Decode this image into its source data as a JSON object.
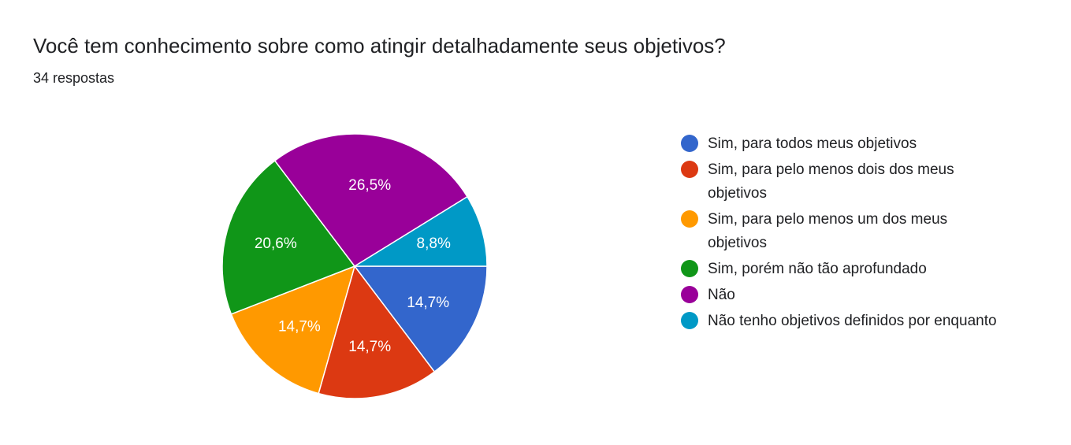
{
  "question": {
    "title": "Você tem conhecimento sobre como atingir detalhadamente seus objetivos?",
    "responses": "34 respostas"
  },
  "chart_data": {
    "type": "pie",
    "title": "Você tem conhecimento sobre como atingir detalhadamente seus objetivos?",
    "subtitle": "34 respostas",
    "legend_position": "right",
    "slices": [
      {
        "label": "Sim, para todos meus objetivos",
        "value": 14.7,
        "display": "14,7%",
        "color": "#3366cc"
      },
      {
        "label": "Sim, para pelo menos dois dos meus objetivos",
        "value": 14.7,
        "display": "14,7%",
        "color": "#dc3912"
      },
      {
        "label": "Sim, para pelo menos um dos meus objetivos",
        "value": 14.7,
        "display": "14,7%",
        "color": "#ff9900"
      },
      {
        "label": "Sim, porém não tão aprofundado",
        "value": 20.6,
        "display": "20,6%",
        "color": "#109618"
      },
      {
        "label": "Não",
        "value": 26.5,
        "display": "26,5%",
        "color": "#990099"
      },
      {
        "label": "Não tenho objetivos definidos por enquanto",
        "value": 8.8,
        "display": "8,8%",
        "color": "#0099c6"
      }
    ]
  }
}
